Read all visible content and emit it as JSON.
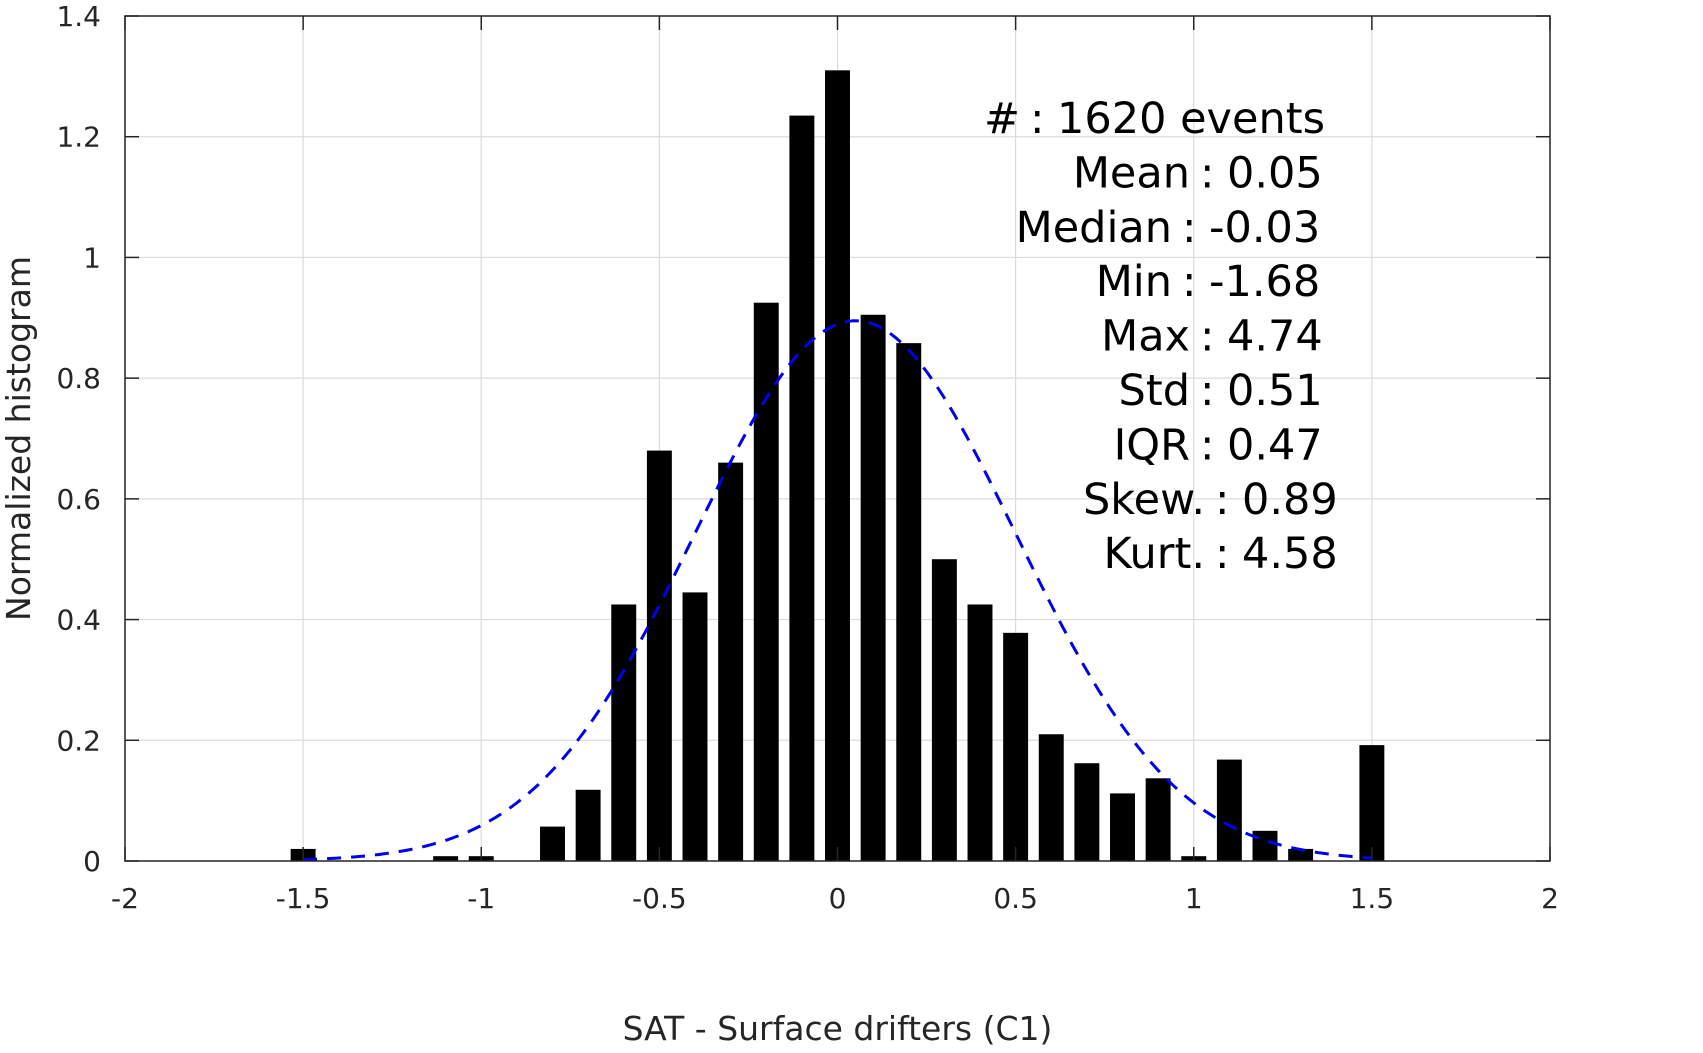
{
  "chart_data": {
    "type": "bar",
    "xlabel": "SAT - Surface drifters (C1)",
    "ylabel": "Normalized histogram",
    "xlim": [
      -2,
      2
    ],
    "ylim": [
      0,
      1.4
    ],
    "xticks": [
      -2,
      -1.5,
      -1,
      -0.5,
      0,
      0.5,
      1,
      1.5,
      2
    ],
    "xtick_labels": [
      "-2",
      "-1.5",
      "-1",
      "-0.5",
      "0",
      "0.5",
      "1",
      "1.5",
      "2"
    ],
    "yticks": [
      0,
      0.2,
      0.4,
      0.6,
      0.8,
      1,
      1.2,
      1.4
    ],
    "ytick_labels": [
      "0",
      "0.2",
      "0.4",
      "0.6",
      "0.8",
      "1",
      "1.2",
      "1.4"
    ],
    "grid": true,
    "bar_color": "#000000",
    "bar_width": 0.07,
    "bins": [
      {
        "x": -1.5,
        "y": 0.02
      },
      {
        "x": -1.1,
        "y": 0.008
      },
      {
        "x": -1.0,
        "y": 0.008
      },
      {
        "x": -0.8,
        "y": 0.057
      },
      {
        "x": -0.7,
        "y": 0.118
      },
      {
        "x": -0.6,
        "y": 0.425
      },
      {
        "x": -0.5,
        "y": 0.68
      },
      {
        "x": -0.4,
        "y": 0.445
      },
      {
        "x": -0.3,
        "y": 0.66
      },
      {
        "x": -0.2,
        "y": 0.925
      },
      {
        "x": -0.1,
        "y": 1.235
      },
      {
        "x": 0.0,
        "y": 1.31
      },
      {
        "x": 0.1,
        "y": 0.905
      },
      {
        "x": 0.2,
        "y": 0.858
      },
      {
        "x": 0.3,
        "y": 0.5
      },
      {
        "x": 0.4,
        "y": 0.425
      },
      {
        "x": 0.5,
        "y": 0.378
      },
      {
        "x": 0.6,
        "y": 0.21
      },
      {
        "x": 0.7,
        "y": 0.162
      },
      {
        "x": 0.8,
        "y": 0.112
      },
      {
        "x": 0.9,
        "y": 0.137
      },
      {
        "x": 1.0,
        "y": 0.008
      },
      {
        "x": 1.1,
        "y": 0.168
      },
      {
        "x": 1.2,
        "y": 0.05
      },
      {
        "x": 1.3,
        "y": 0.02
      },
      {
        "x": 1.5,
        "y": 0.192
      }
    ],
    "fit_curve": {
      "style": "dashed",
      "color": "#0000ee",
      "x_range": [
        -1.5,
        1.5
      ],
      "mean": 0.05,
      "std": 0.45,
      "peak": 0.895
    },
    "annotations": [
      {
        "label": "#  ",
        "value": "1620 events"
      },
      {
        "label": "Mean",
        "value": "0.05"
      },
      {
        "label": "Median",
        "value": "-0.03"
      },
      {
        "label": "Min",
        "value": "-1.68"
      },
      {
        "label": "Max",
        "value": "4.74"
      },
      {
        "label": "Std",
        "value": "0.51"
      },
      {
        "label": "IQR",
        "value": "0.47"
      },
      {
        "label": "Skew.",
        "value": "0.89"
      },
      {
        "label": "Kurt.",
        "value": "4.58"
      }
    ]
  }
}
